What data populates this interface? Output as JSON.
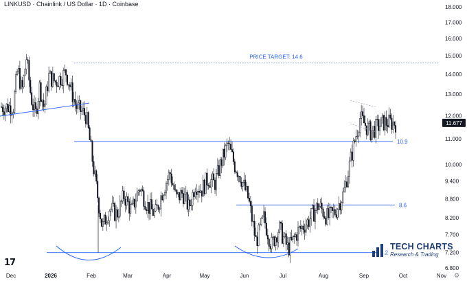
{
  "title": "LINKUSD · Chainlink  /  US Dollar · 1D · Coinbase",
  "logo_text": "17",
  "brand": {
    "name": "TECH CHARTS",
    "tagline": "Research & Trading",
    "color": "#1f3f7a"
  },
  "settings_icon": "gear-icon",
  "chart_data": {
    "type": "candlestick",
    "scale": "log",
    "ylim": [
      6.8,
      18.2
    ],
    "y_ticks": [
      "18.000",
      "17.000",
      "16.000",
      "15.000",
      "14.000",
      "13.000",
      "12.000",
      "11.000",
      "10.000",
      "9.400",
      "8.800",
      "8.200",
      "7.700",
      "7.200",
      "6.800"
    ],
    "x_tick_labels": [
      "Dec",
      "2026",
      "Feb",
      "Mar",
      "Apr",
      "May",
      "Jun",
      "Jul",
      "Aug",
      "Sep",
      "Oct",
      "Nov"
    ],
    "last_price": 11.677,
    "last_price_label": "11.677",
    "colors": {
      "up": "#ffffff",
      "down": "#131722",
      "level": "#2962ff",
      "target": "#5b7bd5",
      "arc": "#2962ff",
      "price_badge": "#131722"
    },
    "levels": [
      {
        "label": "10.9",
        "value": 10.9
      },
      {
        "label": "8.6",
        "value": 8.6
      },
      {
        "label": "7.2",
        "value": 7.2
      }
    ],
    "price_target": {
      "label": "PRICE TARGET: 14.6",
      "value": 14.6
    },
    "path": [
      [
        "Dec",
        12.4
      ],
      [
        "Dec",
        14.3
      ],
      [
        "Dec",
        13.1
      ],
      [
        "Dec",
        14.9
      ],
      [
        "Dec",
        12.9
      ],
      [
        "Dec",
        12.0
      ],
      [
        "Dec",
        13.4
      ],
      [
        "Dec",
        12.3
      ],
      [
        "Dec",
        13.9
      ],
      [
        "2026",
        13.6
      ],
      [
        "2026",
        14.1
      ],
      [
        "2026",
        12.4
      ],
      [
        "2026",
        12.0
      ],
      [
        "Feb",
        9.5
      ],
      [
        "Feb",
        7.9
      ],
      [
        "Feb",
        8.5
      ],
      [
        "Feb",
        8.3
      ],
      [
        "Feb",
        8.9
      ],
      [
        "Mar",
        8.4
      ],
      [
        "Mar",
        9.2
      ],
      [
        "Mar",
        8.6
      ],
      [
        "Mar",
        8.3
      ],
      [
        "Mar",
        9.1
      ],
      [
        "Apr",
        9.7
      ],
      [
        "Apr",
        8.8
      ],
      [
        "Apr",
        9.0
      ],
      [
        "Apr",
        8.5
      ],
      [
        "Apr",
        9.3
      ],
      [
        "Apr",
        9.1
      ],
      [
        "May",
        9.5
      ],
      [
        "May",
        9.3
      ],
      [
        "May",
        10.1
      ],
      [
        "May",
        10.8
      ],
      [
        "May",
        10.0
      ],
      [
        "May",
        9.5
      ],
      [
        "Jun",
        8.8
      ],
      [
        "Jun",
        7.5
      ],
      [
        "Jun",
        8.2
      ],
      [
        "Jun",
        7.4
      ],
      [
        "Jun",
        7.9
      ],
      [
        "Jul",
        7.3
      ],
      [
        "Jul",
        7.8
      ],
      [
        "Jul",
        8.1
      ],
      [
        "Jul",
        8.6
      ],
      [
        "Aug",
        8.2
      ],
      [
        "Aug",
        8.4
      ],
      [
        "Aug",
        9.0
      ],
      [
        "Aug",
        10.4
      ],
      [
        "Aug",
        11.9
      ],
      [
        "Sep",
        11.3
      ],
      [
        "Sep",
        11.7
      ],
      [
        "Sep",
        11.677
      ]
    ],
    "annotations": [
      "neckline-diagonal",
      "resistance-triangle",
      "left-arc",
      "right-arc"
    ]
  }
}
